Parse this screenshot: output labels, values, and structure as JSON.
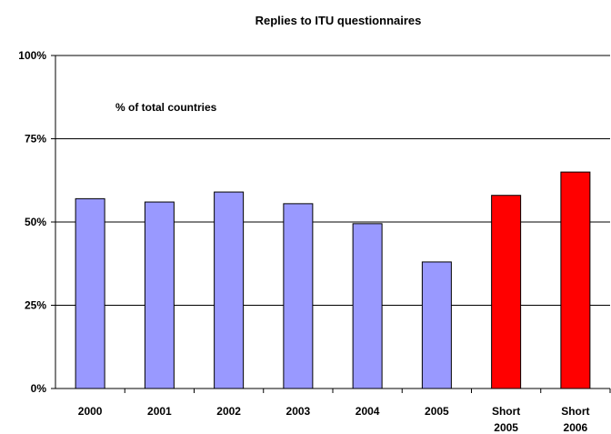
{
  "chart_data": {
    "type": "bar",
    "title": "Replies to ITU questionnaires",
    "annotation": "% of total countries",
    "xlabel": "",
    "ylabel": "",
    "ylim": [
      0,
      100
    ],
    "y_ticks": [
      "0%",
      "25%",
      "50%",
      "75%",
      "100%"
    ],
    "y_tick_values": [
      0,
      25,
      50,
      75,
      100
    ],
    "categories": [
      [
        "2000"
      ],
      [
        "2001"
      ],
      [
        "2002"
      ],
      [
        "2003"
      ],
      [
        "2004"
      ],
      [
        "2005"
      ],
      [
        "Short",
        "2005"
      ],
      [
        "Short",
        "2006"
      ]
    ],
    "values": [
      57,
      56,
      59,
      55.5,
      49.5,
      38,
      58,
      65
    ],
    "colors": [
      "#9999ff",
      "#9999ff",
      "#9999ff",
      "#9999ff",
      "#9999ff",
      "#9999ff",
      "#ff0000",
      "#ff0000"
    ],
    "grid": true,
    "legend": "none"
  }
}
